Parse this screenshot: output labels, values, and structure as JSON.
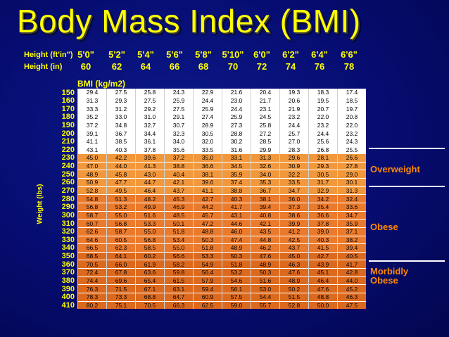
{
  "title": "Body Mass Index (BMI)",
  "height_ft_label": "Height (ft'in\")",
  "height_in_label": "Height (in)",
  "heights_ft": [
    "5'0\"",
    "5'2\"",
    "5'4\"",
    "5'6\"",
    "5'8\"",
    "5'10\"",
    "6'0\"",
    "6'2\"",
    "6'4\"",
    "6'6\""
  ],
  "heights_in": [
    "60",
    "62",
    "64",
    "66",
    "68",
    "70",
    "72",
    "74",
    "76",
    "78"
  ],
  "bmi_label": "BMI  (kg/m2)",
  "weight_label": "Weight (lbs)",
  "categories": {
    "overweight": "Overweight",
    "obese": "Obese",
    "morbid_1": "Morbidly",
    "morbid_2": "Obese"
  },
  "colors": {
    "background": "#050a6b",
    "header_text": "#ffff00",
    "category_text": "#ff8800",
    "underweight_normal": "#ffffff",
    "normal": "#efd060",
    "overweight": "#f2983c",
    "obese": "#ea7a2c",
    "morbidly_obese": "#dc6a1e"
  },
  "rows": [
    {
      "w": "150",
      "v": [
        "29.4",
        "27.5",
        "25.8",
        "24.3",
        "22.9",
        "21.6",
        "20.4",
        "19.3",
        "18.3",
        "17.4"
      ]
    },
    {
      "w": "160",
      "v": [
        "31.3",
        "29.3",
        "27.5",
        "25.9",
        "24.4",
        "23.0",
        "21.7",
        "20.6",
        "19.5",
        "18.5"
      ]
    },
    {
      "w": "170",
      "v": [
        "33.3",
        "31.2",
        "29.2",
        "27.5",
        "25.9",
        "24.4",
        "23.1",
        "21.9",
        "20.7",
        "19.7"
      ]
    },
    {
      "w": "180",
      "v": [
        "35.2",
        "33.0",
        "31.0",
        "29.1",
        "27.4",
        "25.9",
        "24.5",
        "23.2",
        "22.0",
        "20.8"
      ]
    },
    {
      "w": "190",
      "v": [
        "37.2",
        "34.8",
        "32.7",
        "30.7",
        "28.9",
        "27.3",
        "25.8",
        "24.4",
        "23.2",
        "22.0"
      ]
    },
    {
      "w": "200",
      "v": [
        "39.1",
        "36.7",
        "34.4",
        "32.3",
        "30.5",
        "28.8",
        "27.2",
        "25.7",
        "24.4",
        "23.2"
      ]
    },
    {
      "w": "210",
      "v": [
        "41.1",
        "38.5",
        "36.1",
        "34.0",
        "32.0",
        "30.2",
        "28.5",
        "27.0",
        "25.6",
        "24.3"
      ]
    },
    {
      "w": "220",
      "v": [
        "43.1",
        "40.3",
        "37.8",
        "35.6",
        "33.5",
        "31.6",
        "29.9",
        "28.3",
        "26.8",
        "25.5"
      ]
    },
    {
      "w": "230",
      "v": [
        "45.0",
        "42.2",
        "39.6",
        "37.2",
        "35.0",
        "33.1",
        "31.3",
        "29.6",
        "28.1",
        "26.6"
      ]
    },
    {
      "w": "240",
      "v": [
        "47.0",
        "44.0",
        "41.3",
        "38.8",
        "36.6",
        "34.5",
        "32.6",
        "30.9",
        "29.3",
        "27.8"
      ]
    },
    {
      "w": "250",
      "v": [
        "48.9",
        "45.8",
        "43.0",
        "40.4",
        "38.1",
        "35.9",
        "34.0",
        "32.2",
        "30.5",
        "29.0"
      ]
    },
    {
      "w": "260",
      "v": [
        "50.9",
        "47.7",
        "44.7",
        "42.1",
        "39.6",
        "37.4",
        "35.3",
        "33.5",
        "31.7",
        "30.1"
      ]
    },
    {
      "w": "270",
      "v": [
        "52.8",
        "49.5",
        "46.4",
        "43.7",
        "41.1",
        "38.8",
        "36.7",
        "34.7",
        "32.9",
        "31.3"
      ]
    },
    {
      "w": "280",
      "v": [
        "54.8",
        "51.3",
        "48.2",
        "45.3",
        "42.7",
        "40.3",
        "38.1",
        "36.0",
        "34.2",
        "32.4"
      ]
    },
    {
      "w": "290",
      "v": [
        "56.8",
        "53.2",
        "49.9",
        "46.9",
        "44.2",
        "41.7",
        "39.4",
        "37.3",
        "35.4",
        "33.6"
      ]
    },
    {
      "w": "300",
      "v": [
        "58.7",
        "55.0",
        "51.6",
        "48.5",
        "45.7",
        "43.1",
        "40.8",
        "38.6",
        "36.6",
        "34.7"
      ]
    },
    {
      "w": "310",
      "v": [
        "60.7",
        "56.8",
        "53.3",
        "50.1",
        "47.2",
        "44.6",
        "42.1",
        "39.9",
        "37.8",
        "35.9"
      ]
    },
    {
      "w": "320",
      "v": [
        "62.6",
        "58.7",
        "55.0",
        "51.8",
        "48.8",
        "46.0",
        "43.5",
        "41.2",
        "39.0",
        "37.1"
      ]
    },
    {
      "w": "330",
      "v": [
        "64.6",
        "60.5",
        "56.8",
        "53.4",
        "50.3",
        "47.4",
        "44.8",
        "42.5",
        "40.3",
        "38.2"
      ]
    },
    {
      "w": "340",
      "v": [
        "66.5",
        "62.3",
        "58.5",
        "55.0",
        "51.8",
        "48.9",
        "46.2",
        "43.7",
        "41.5",
        "39.4"
      ]
    },
    {
      "w": "350",
      "v": [
        "68.5",
        "64.1",
        "60.2",
        "56.6",
        "53.3",
        "50.3",
        "47.6",
        "45.0",
        "42.7",
        "40.5"
      ]
    },
    {
      "w": "360",
      "v": [
        "70.5",
        "66.0",
        "61.9",
        "58.2",
        "54.9",
        "51.8",
        "48.9",
        "46.3",
        "43.9",
        "41.7"
      ]
    },
    {
      "w": "370",
      "v": [
        "72.4",
        "67.8",
        "63.6",
        "59.8",
        "56.4",
        "53.2",
        "50.3",
        "47.6",
        "45.1",
        "42.8"
      ]
    },
    {
      "w": "380",
      "v": [
        "74.4",
        "69.6",
        "65.4",
        "61.5",
        "57.9",
        "54.6",
        "51.6",
        "48.9",
        "46.4",
        "44.0"
      ]
    },
    {
      "w": "390",
      "v": [
        "76.3",
        "71.5",
        "67.1",
        "63.1",
        "59.4",
        "56.1",
        "53.0",
        "50.2",
        "47.6",
        "45.2"
      ]
    },
    {
      "w": "400",
      "v": [
        "78.3",
        "73.3",
        "68.8",
        "64.7",
        "60.9",
        "57.5",
        "54.4",
        "51.5",
        "48.8",
        "46.3"
      ]
    },
    {
      "w": "410",
      "v": [
        "80.2",
        "75.1",
        "70.5",
        "66.3",
        "62.5",
        "59.0",
        "55.7",
        "52.8",
        "50.0",
        "47.5"
      ]
    }
  ]
}
